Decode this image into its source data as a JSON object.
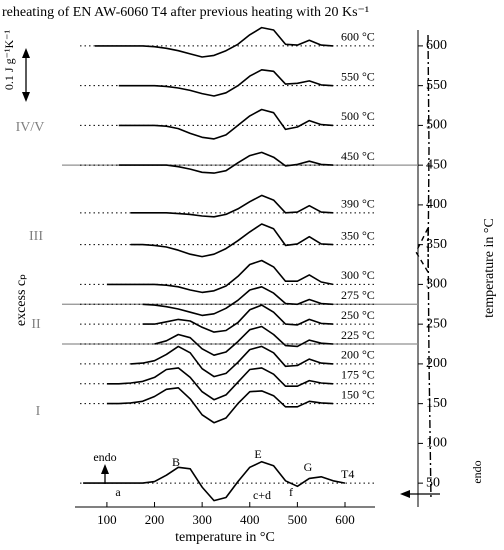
{
  "chart_data": {
    "type": "line",
    "title": "reheating of EN AW-6060 T4 after previous heating with 20 Ks⁻¹",
    "xlabel": "temperature in °C",
    "ylabel": "temperature in °C",
    "ylabel_left": "excess cₚ",
    "scale_label": "0.1 J g⁻¹K⁻¹",
    "xlim": [
      33,
      663
    ],
    "xticks": [
      100,
      200,
      300,
      400,
      500,
      600
    ],
    "ylim": [
      20,
      620
    ],
    "yticks": [
      50,
      100,
      150,
      200,
      250,
      300,
      350,
      400,
      450,
      500,
      550,
      600
    ],
    "highlight_lines": [
      450,
      275,
      225
    ],
    "regions": [
      "IV/V",
      "III",
      "II",
      "I"
    ],
    "annotations": [
      "endo",
      "a",
      "B",
      "c+d",
      "E",
      "f",
      "G",
      "endo"
    ],
    "color": "#000000",
    "x": [
      50,
      75,
      100,
      125,
      150,
      175,
      200,
      225,
      250,
      275,
      300,
      325,
      350,
      375,
      400,
      425,
      450,
      475,
      500,
      525,
      550,
      575,
      600
    ],
    "series": [
      {
        "name": "600 °C",
        "baseline": 600,
        "values": [
          null,
          600,
          600,
          600,
          600,
          600,
          599,
          597,
          594,
          590,
          586,
          588,
          594,
          602,
          614,
          623,
          620,
          602,
          601,
          607,
          601,
          600,
          null
        ]
      },
      {
        "name": "550 °C",
        "baseline": 550,
        "values": [
          null,
          null,
          null,
          550,
          550,
          550,
          550,
          549,
          547,
          544,
          540,
          537,
          541,
          550,
          562,
          570,
          568,
          552,
          553,
          556,
          551,
          550,
          null
        ]
      },
      {
        "name": "500 °C",
        "baseline": 500,
        "values": [
          null,
          null,
          null,
          500,
          500,
          500,
          500,
          499,
          496,
          490,
          485,
          483,
          488,
          500,
          512,
          520,
          516,
          495,
          498,
          506,
          501,
          500,
          null
        ]
      },
      {
        "name": "450 °C",
        "baseline": 450,
        "values": [
          null,
          null,
          null,
          450,
          450,
          450,
          450,
          450,
          448,
          445,
          441,
          440,
          443,
          453,
          462,
          466,
          460,
          449,
          451,
          455,
          451,
          450,
          null
        ]
      },
      {
        "name": "390 °C",
        "baseline": 390,
        "values": [
          null,
          null,
          null,
          null,
          390,
          390,
          390,
          390,
          389,
          388,
          386,
          385,
          388,
          395,
          404,
          412,
          406,
          390,
          391,
          399,
          391,
          390,
          null
        ]
      },
      {
        "name": "350 °C",
        "baseline": 350,
        "values": [
          null,
          null,
          null,
          null,
          350,
          350,
          349,
          347,
          343,
          338,
          335,
          338,
          345,
          355,
          366,
          376,
          370,
          349,
          351,
          360,
          351,
          350,
          null
        ]
      },
      {
        "name": "300 °C",
        "baseline": 300,
        "values": [
          null,
          null,
          300,
          300,
          300,
          300,
          300,
          299,
          297,
          293,
          290,
          292,
          298,
          310,
          325,
          330,
          322,
          304,
          304,
          312,
          303,
          300,
          null
        ]
      },
      {
        "name": "275 °C",
        "baseline": 275,
        "values": [
          null,
          null,
          null,
          null,
          null,
          275,
          274,
          272,
          269,
          265,
          261,
          263,
          270,
          280,
          293,
          297,
          289,
          276,
          275,
          281,
          276,
          275,
          null
        ]
      },
      {
        "name": "250 °C",
        "baseline": 250,
        "values": [
          null,
          null,
          null,
          null,
          null,
          250,
          250,
          253,
          256,
          254,
          246,
          240,
          242,
          252,
          268,
          274,
          265,
          250,
          249,
          256,
          251,
          250,
          null
        ]
      },
      {
        "name": "225 °C",
        "baseline": 225,
        "values": [
          null,
          null,
          null,
          null,
          null,
          null,
          225,
          229,
          237,
          233,
          219,
          211,
          215,
          228,
          243,
          247,
          237,
          223,
          222,
          230,
          226,
          225,
          null
        ]
      },
      {
        "name": "200 °C",
        "baseline": 200,
        "values": [
          null,
          null,
          null,
          null,
          200,
          201,
          204,
          212,
          222,
          214,
          194,
          184,
          188,
          202,
          218,
          222,
          214,
          197,
          198,
          206,
          201,
          200,
          null
        ]
      },
      {
        "name": "175 °C",
        "baseline": 175,
        "values": [
          null,
          null,
          175,
          175,
          176,
          178,
          183,
          193,
          195,
          183,
          165,
          155,
          161,
          177,
          193,
          195,
          187,
          172,
          172,
          179,
          176,
          175,
          null
        ]
      },
      {
        "name": "150 °C",
        "baseline": 150,
        "values": [
          null,
          null,
          150,
          150,
          151,
          153,
          159,
          168,
          170,
          156,
          136,
          126,
          132,
          150,
          165,
          166,
          160,
          146,
          146,
          153,
          151,
          150,
          null
        ]
      },
      {
        "name": "T4",
        "baseline": 50,
        "values": [
          50,
          50,
          50,
          50,
          50,
          50,
          52,
          60,
          70,
          68,
          45,
          28,
          32,
          52,
          70,
          77,
          72,
          53,
          46,
          56,
          58,
          53,
          50
        ]
      }
    ]
  }
}
